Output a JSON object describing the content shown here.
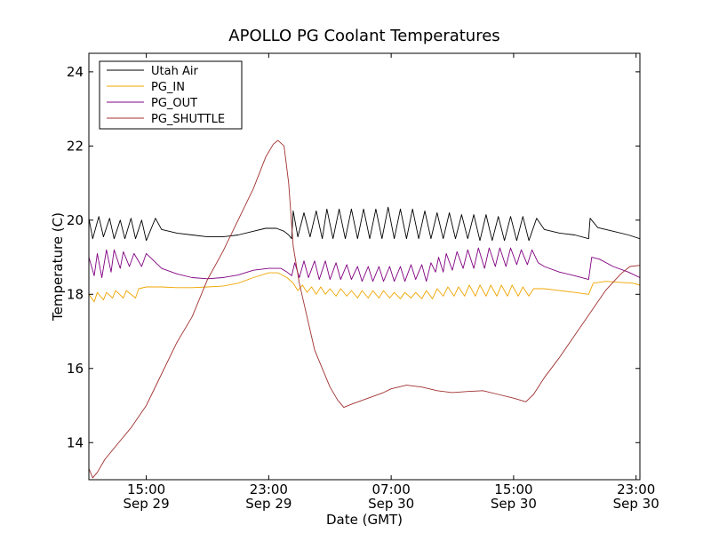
{
  "chart_data": {
    "type": "line",
    "title": "APOLLO PG Coolant Temperatures",
    "xlabel": "Date (GMT)",
    "ylabel": "Temperature (C)",
    "xlim": [
      11.25,
      47.25
    ],
    "ylim": [
      13,
      24.5
    ],
    "x_unit": "hours since Sep 29 00:00 GMT",
    "x_ticks": [
      {
        "x": 15,
        "time": "15:00",
        "date": "Sep 29"
      },
      {
        "x": 23,
        "time": "23:00",
        "date": "Sep 29"
      },
      {
        "x": 31,
        "time": "07:00",
        "date": "Sep 30"
      },
      {
        "x": 39,
        "time": "15:00",
        "date": "Sep 30"
      },
      {
        "x": 47,
        "time": "23:00",
        "date": "Sep 30"
      }
    ],
    "y_ticks": [
      {
        "y": 14,
        "label": "14"
      },
      {
        "y": 16,
        "label": "16"
      },
      {
        "y": 18,
        "label": "18"
      },
      {
        "y": 20,
        "label": "20"
      },
      {
        "y": 22,
        "label": "22"
      },
      {
        "y": 24,
        "label": "24"
      }
    ],
    "legend_position": "top-left",
    "series": [
      {
        "name": "Utah Air",
        "color": "#000000",
        "points": [
          [
            11.25,
            20.05
          ],
          [
            11.5,
            19.5
          ],
          [
            11.9,
            20.1
          ],
          [
            12.2,
            19.55
          ],
          [
            12.6,
            20.05
          ],
          [
            12.9,
            19.5
          ],
          [
            13.3,
            20.0
          ],
          [
            13.6,
            19.5
          ],
          [
            14.0,
            20.05
          ],
          [
            14.3,
            19.5
          ],
          [
            14.7,
            20.0
          ],
          [
            15.0,
            19.45
          ],
          [
            15.6,
            20.05
          ],
          [
            16.0,
            19.75
          ],
          [
            17.0,
            19.65
          ],
          [
            18.0,
            19.6
          ],
          [
            19.0,
            19.55
          ],
          [
            20.0,
            19.55
          ],
          [
            21.0,
            19.6
          ],
          [
            22.0,
            19.7
          ],
          [
            22.8,
            19.78
          ],
          [
            23.5,
            19.78
          ],
          [
            24.0,
            19.7
          ],
          [
            24.3,
            19.6
          ],
          [
            24.5,
            19.5
          ],
          [
            24.6,
            20.25
          ],
          [
            24.9,
            19.55
          ],
          [
            25.3,
            20.2
          ],
          [
            25.7,
            19.55
          ],
          [
            26.1,
            20.25
          ],
          [
            26.5,
            19.5
          ],
          [
            26.8,
            20.3
          ],
          [
            27.2,
            19.5
          ],
          [
            27.6,
            20.3
          ],
          [
            28.0,
            19.5
          ],
          [
            28.4,
            20.3
          ],
          [
            28.8,
            19.5
          ],
          [
            29.2,
            20.3
          ],
          [
            29.6,
            19.5
          ],
          [
            30.0,
            20.3
          ],
          [
            30.4,
            19.5
          ],
          [
            30.8,
            20.35
          ],
          [
            31.2,
            19.5
          ],
          [
            31.6,
            20.3
          ],
          [
            32.0,
            19.5
          ],
          [
            32.4,
            20.3
          ],
          [
            32.8,
            19.5
          ],
          [
            33.2,
            20.25
          ],
          [
            33.6,
            19.5
          ],
          [
            34.0,
            20.2
          ],
          [
            34.4,
            19.5
          ],
          [
            34.8,
            20.2
          ],
          [
            35.2,
            19.5
          ],
          [
            35.6,
            20.15
          ],
          [
            36.0,
            19.5
          ],
          [
            36.4,
            20.15
          ],
          [
            36.8,
            19.45
          ],
          [
            37.2,
            20.15
          ],
          [
            37.6,
            19.45
          ],
          [
            38.0,
            20.1
          ],
          [
            38.4,
            19.45
          ],
          [
            38.8,
            20.1
          ],
          [
            39.2,
            19.45
          ],
          [
            39.6,
            20.1
          ],
          [
            40.0,
            19.45
          ],
          [
            40.5,
            20.05
          ],
          [
            41.0,
            19.75
          ],
          [
            42.0,
            19.65
          ],
          [
            43.0,
            19.6
          ],
          [
            43.9,
            19.5
          ],
          [
            44.0,
            20.05
          ],
          [
            44.5,
            19.8
          ],
          [
            45.5,
            19.7
          ],
          [
            46.5,
            19.6
          ],
          [
            47.25,
            19.5
          ]
        ]
      },
      {
        "name": "PG_IN",
        "color": "#f0a500",
        "points": [
          [
            11.25,
            18.0
          ],
          [
            11.6,
            17.8
          ],
          [
            11.8,
            18.05
          ],
          [
            12.2,
            17.85
          ],
          [
            12.4,
            18.05
          ],
          [
            12.8,
            17.9
          ],
          [
            13.0,
            18.1
          ],
          [
            13.5,
            17.9
          ],
          [
            13.7,
            18.1
          ],
          [
            14.3,
            17.9
          ],
          [
            14.5,
            18.15
          ],
          [
            15.0,
            18.2
          ],
          [
            16.0,
            18.2
          ],
          [
            17.0,
            18.18
          ],
          [
            18.0,
            18.18
          ],
          [
            19.0,
            18.2
          ],
          [
            20.0,
            18.22
          ],
          [
            21.0,
            18.3
          ],
          [
            22.0,
            18.45
          ],
          [
            23.0,
            18.58
          ],
          [
            23.6,
            18.58
          ],
          [
            24.2,
            18.45
          ],
          [
            24.6,
            18.3
          ],
          [
            24.9,
            18.1
          ],
          [
            25.2,
            18.25
          ],
          [
            25.5,
            18.05
          ],
          [
            25.8,
            18.2
          ],
          [
            26.1,
            18.0
          ],
          [
            26.4,
            18.2
          ],
          [
            26.7,
            18.0
          ],
          [
            27.0,
            18.15
          ],
          [
            27.4,
            17.95
          ],
          [
            27.7,
            18.15
          ],
          [
            28.1,
            17.95
          ],
          [
            28.4,
            18.1
          ],
          [
            28.8,
            17.9
          ],
          [
            29.1,
            18.1
          ],
          [
            29.5,
            17.9
          ],
          [
            29.8,
            18.1
          ],
          [
            30.2,
            17.9
          ],
          [
            30.5,
            18.1
          ],
          [
            30.9,
            17.9
          ],
          [
            31.2,
            18.05
          ],
          [
            31.6,
            17.88
          ],
          [
            31.9,
            18.05
          ],
          [
            32.3,
            17.9
          ],
          [
            32.6,
            18.05
          ],
          [
            33.0,
            17.88
          ],
          [
            33.3,
            18.1
          ],
          [
            33.7,
            17.88
          ],
          [
            34.0,
            18.15
          ],
          [
            34.4,
            17.95
          ],
          [
            34.7,
            18.2
          ],
          [
            35.1,
            17.95
          ],
          [
            35.4,
            18.2
          ],
          [
            35.8,
            17.95
          ],
          [
            36.1,
            18.25
          ],
          [
            36.5,
            17.95
          ],
          [
            36.8,
            18.25
          ],
          [
            37.2,
            17.95
          ],
          [
            37.5,
            18.25
          ],
          [
            37.9,
            17.95
          ],
          [
            38.2,
            18.25
          ],
          [
            38.6,
            17.95
          ],
          [
            38.9,
            18.25
          ],
          [
            39.3,
            17.95
          ],
          [
            39.6,
            18.2
          ],
          [
            40.0,
            17.95
          ],
          [
            40.3,
            18.15
          ],
          [
            41.0,
            18.15
          ],
          [
            42.0,
            18.1
          ],
          [
            43.0,
            18.05
          ],
          [
            43.9,
            18.0
          ],
          [
            44.2,
            18.3
          ],
          [
            45.0,
            18.35
          ],
          [
            46.0,
            18.32
          ],
          [
            46.8,
            18.3
          ],
          [
            47.25,
            18.25
          ]
        ]
      },
      {
        "name": "PG_OUT",
        "color": "#800080",
        "points": [
          [
            11.25,
            19.0
          ],
          [
            11.6,
            18.5
          ],
          [
            11.8,
            19.1
          ],
          [
            12.1,
            18.45
          ],
          [
            12.4,
            19.2
          ],
          [
            12.7,
            18.6
          ],
          [
            12.9,
            19.2
          ],
          [
            13.3,
            18.7
          ],
          [
            13.5,
            19.15
          ],
          [
            13.9,
            18.75
          ],
          [
            14.2,
            19.1
          ],
          [
            14.7,
            18.75
          ],
          [
            15.0,
            19.1
          ],
          [
            15.5,
            18.9
          ],
          [
            16.0,
            18.7
          ],
          [
            17.0,
            18.55
          ],
          [
            18.0,
            18.45
          ],
          [
            19.0,
            18.42
          ],
          [
            20.0,
            18.45
          ],
          [
            21.0,
            18.52
          ],
          [
            22.0,
            18.65
          ],
          [
            23.0,
            18.7
          ],
          [
            23.8,
            18.7
          ],
          [
            24.2,
            18.6
          ],
          [
            24.5,
            18.5
          ],
          [
            24.7,
            18.85
          ],
          [
            25.0,
            18.45
          ],
          [
            25.3,
            18.9
          ],
          [
            25.6,
            18.45
          ],
          [
            26.0,
            18.9
          ],
          [
            26.3,
            18.4
          ],
          [
            26.7,
            18.9
          ],
          [
            27.0,
            18.4
          ],
          [
            27.4,
            18.85
          ],
          [
            27.7,
            18.4
          ],
          [
            28.1,
            18.8
          ],
          [
            28.4,
            18.4
          ],
          [
            28.8,
            18.75
          ],
          [
            29.1,
            18.35
          ],
          [
            29.5,
            18.75
          ],
          [
            29.8,
            18.35
          ],
          [
            30.2,
            18.75
          ],
          [
            30.5,
            18.35
          ],
          [
            30.9,
            18.75
          ],
          [
            31.2,
            18.35
          ],
          [
            31.6,
            18.75
          ],
          [
            31.9,
            18.35
          ],
          [
            32.3,
            18.8
          ],
          [
            32.6,
            18.4
          ],
          [
            33.0,
            18.8
          ],
          [
            33.3,
            18.35
          ],
          [
            33.6,
            18.85
          ],
          [
            33.9,
            18.6
          ],
          [
            34.1,
            19.0
          ],
          [
            34.4,
            18.6
          ],
          [
            34.6,
            19.1
          ],
          [
            35.0,
            18.65
          ],
          [
            35.3,
            19.15
          ],
          [
            35.7,
            18.7
          ],
          [
            36.0,
            19.2
          ],
          [
            36.4,
            18.7
          ],
          [
            36.7,
            19.25
          ],
          [
            37.1,
            18.7
          ],
          [
            37.4,
            19.25
          ],
          [
            37.8,
            18.75
          ],
          [
            38.1,
            19.25
          ],
          [
            38.5,
            18.75
          ],
          [
            38.8,
            19.25
          ],
          [
            39.2,
            18.8
          ],
          [
            39.5,
            19.2
          ],
          [
            39.9,
            18.8
          ],
          [
            40.2,
            19.2
          ],
          [
            40.6,
            18.85
          ],
          [
            41.0,
            18.75
          ],
          [
            42.0,
            18.6
          ],
          [
            43.0,
            18.5
          ],
          [
            43.9,
            18.4
          ],
          [
            44.1,
            19.0
          ],
          [
            44.6,
            18.95
          ],
          [
            45.5,
            18.75
          ],
          [
            46.5,
            18.6
          ],
          [
            47.25,
            18.45
          ]
        ]
      },
      {
        "name": "PG_SHUTTLE",
        "color": "#a03030",
        "points": [
          [
            11.25,
            13.3
          ],
          [
            11.5,
            13.05
          ],
          [
            11.8,
            13.2
          ],
          [
            12.3,
            13.55
          ],
          [
            13.0,
            13.9
          ],
          [
            14.0,
            14.4
          ],
          [
            15.0,
            15.0
          ],
          [
            16.0,
            15.85
          ],
          [
            17.0,
            16.7
          ],
          [
            18.0,
            17.4
          ],
          [
            19.0,
            18.4
          ],
          [
            20.0,
            19.15
          ],
          [
            21.0,
            20.0
          ],
          [
            22.0,
            20.85
          ],
          [
            22.8,
            21.7
          ],
          [
            23.3,
            22.05
          ],
          [
            23.6,
            22.15
          ],
          [
            24.0,
            22.0
          ],
          [
            24.3,
            21.0
          ],
          [
            24.6,
            19.3
          ],
          [
            25.0,
            18.3
          ],
          [
            25.5,
            17.4
          ],
          [
            26.0,
            16.5
          ],
          [
            26.5,
            16.0
          ],
          [
            27.0,
            15.5
          ],
          [
            27.5,
            15.15
          ],
          [
            27.9,
            14.95
          ],
          [
            28.5,
            15.05
          ],
          [
            29.5,
            15.2
          ],
          [
            30.5,
            15.35
          ],
          [
            31.0,
            15.45
          ],
          [
            32.0,
            15.55
          ],
          [
            33.0,
            15.5
          ],
          [
            34.0,
            15.4
          ],
          [
            35.0,
            15.35
          ],
          [
            36.0,
            15.38
          ],
          [
            37.0,
            15.4
          ],
          [
            38.0,
            15.3
          ],
          [
            39.0,
            15.2
          ],
          [
            39.8,
            15.1
          ],
          [
            40.3,
            15.3
          ],
          [
            41.0,
            15.75
          ],
          [
            42.0,
            16.3
          ],
          [
            43.0,
            16.9
          ],
          [
            44.0,
            17.5
          ],
          [
            45.0,
            18.1
          ],
          [
            46.0,
            18.55
          ],
          [
            46.6,
            18.75
          ],
          [
            47.25,
            18.78
          ]
        ]
      }
    ]
  }
}
